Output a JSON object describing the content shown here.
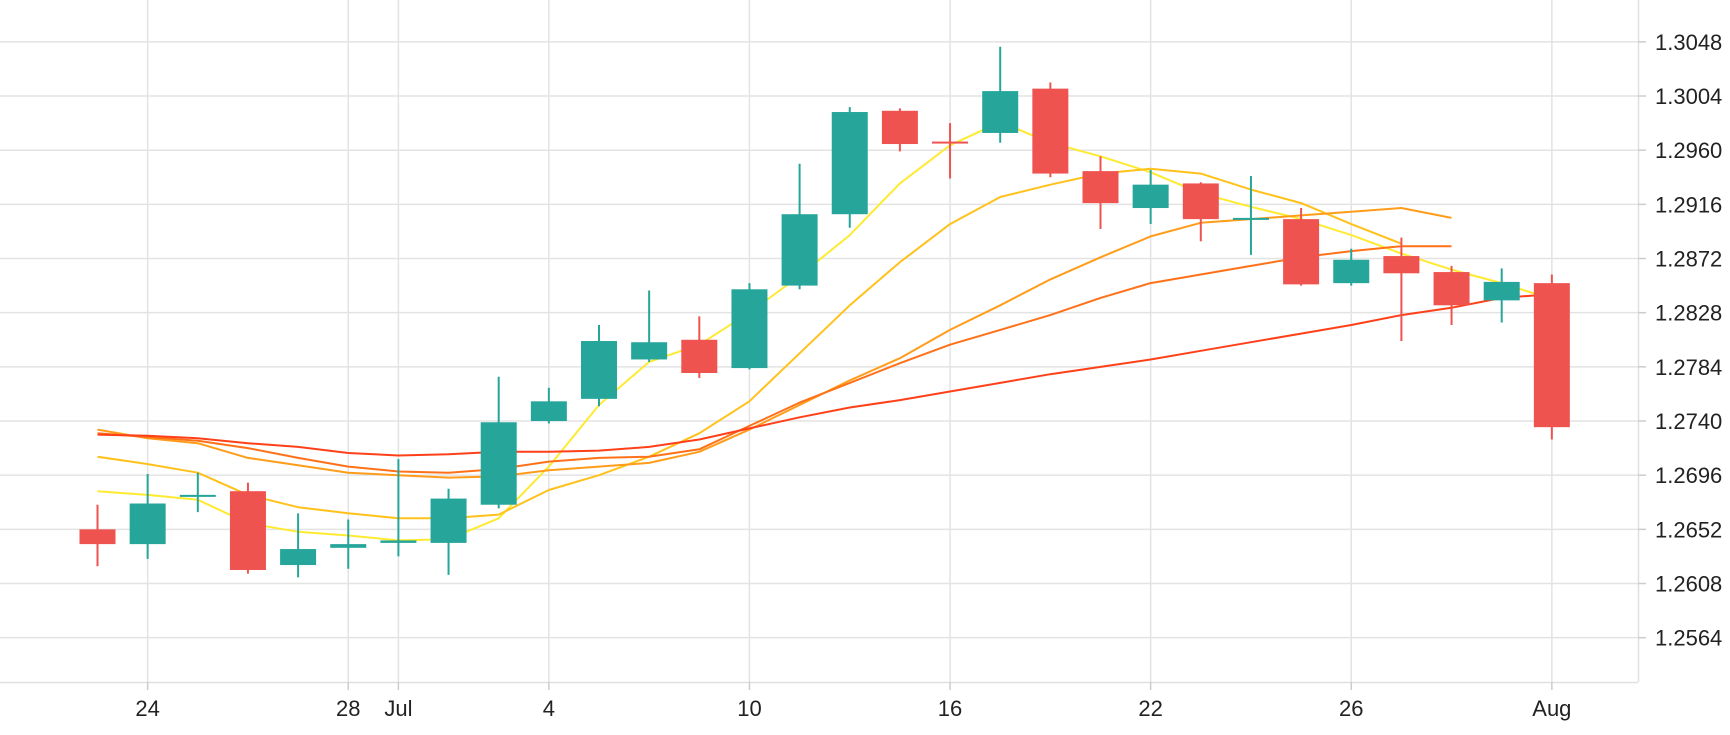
{
  "chart_data": {
    "type": "candlestick",
    "title": "",
    "xlabel": "",
    "ylabel": "",
    "ylim": [
      1.2528,
      1.3082
    ],
    "grid": true,
    "y_ticks": [
      "1.2564",
      "1.2608",
      "1.2652",
      "1.2696",
      "1.2740",
      "1.2784",
      "1.2828",
      "1.2872",
      "1.2916",
      "1.2960",
      "1.3004",
      "1.3048"
    ],
    "x_ticks": [
      {
        "index": 1,
        "label": "24"
      },
      {
        "index": 5,
        "label": "28"
      },
      {
        "index": 6,
        "label": "Jul"
      },
      {
        "index": 9,
        "label": "4"
      },
      {
        "index": 13,
        "label": "10"
      },
      {
        "index": 17,
        "label": "16"
      },
      {
        "index": 21,
        "label": "22"
      },
      {
        "index": 25,
        "label": "26"
      },
      {
        "index": 29,
        "label": "Aug"
      }
    ],
    "up_color": "#26a69a",
    "down_color": "#ef5350",
    "candles": [
      {
        "o": 1.2652,
        "h": 1.2672,
        "l": 1.2622,
        "c": 1.264
      },
      {
        "o": 1.264,
        "h": 1.2697,
        "l": 1.2628,
        "c": 1.2673
      },
      {
        "o": 1.268,
        "h": 1.2698,
        "l": 1.2666,
        "c": 1.268
      },
      {
        "o": 1.2683,
        "h": 1.269,
        "l": 1.2616,
        "c": 1.2619
      },
      {
        "o": 1.2623,
        "h": 1.2665,
        "l": 1.2613,
        "c": 1.2636
      },
      {
        "o": 1.2637,
        "h": 1.266,
        "l": 1.262,
        "c": 1.264
      },
      {
        "o": 1.2641,
        "h": 1.2709,
        "l": 1.263,
        "c": 1.2643
      },
      {
        "o": 1.2641,
        "h": 1.2685,
        "l": 1.2615,
        "c": 1.2677
      },
      {
        "o": 1.2672,
        "h": 1.2776,
        "l": 1.2669,
        "c": 1.2739
      },
      {
        "o": 1.274,
        "h": 1.2767,
        "l": 1.2738,
        "c": 1.2756
      },
      {
        "o": 1.2758,
        "h": 1.2818,
        "l": 1.2752,
        "c": 1.2805
      },
      {
        "o": 1.279,
        "h": 1.2846,
        "l": 1.2788,
        "c": 1.2804
      },
      {
        "o": 1.2806,
        "h": 1.2825,
        "l": 1.2775,
        "c": 1.2779
      },
      {
        "o": 1.2783,
        "h": 1.2852,
        "l": 1.2782,
        "c": 1.2847
      },
      {
        "o": 1.285,
        "h": 1.2949,
        "l": 1.2847,
        "c": 1.2908
      },
      {
        "o": 1.2908,
        "h": 1.2995,
        "l": 1.2897,
        "c": 1.2991
      },
      {
        "o": 1.2992,
        "h": 1.2994,
        "l": 1.2959,
        "c": 1.2965
      },
      {
        "o": 1.2967,
        "h": 1.2982,
        "l": 1.2937,
        "c": 1.2966
      },
      {
        "o": 1.2974,
        "h": 1.3044,
        "l": 1.2966,
        "c": 1.3008
      },
      {
        "o": 1.301,
        "h": 1.3015,
        "l": 1.2938,
        "c": 1.2941
      },
      {
        "o": 1.2943,
        "h": 1.2955,
        "l": 1.2896,
        "c": 1.2917
      },
      {
        "o": 1.2913,
        "h": 1.2944,
        "l": 1.29,
        "c": 1.2932
      },
      {
        "o": 1.2933,
        "h": 1.2934,
        "l": 1.2886,
        "c": 1.2904
      },
      {
        "o": 1.2905,
        "h": 1.2939,
        "l": 1.2875,
        "c": 1.2905
      },
      {
        "o": 1.2904,
        "h": 1.2913,
        "l": 1.285,
        "c": 1.2851
      },
      {
        "o": 1.2852,
        "h": 1.288,
        "l": 1.285,
        "c": 1.2871
      },
      {
        "o": 1.2874,
        "h": 1.2889,
        "l": 1.2805,
        "c": 1.286
      },
      {
        "o": 1.2861,
        "h": 1.2866,
        "l": 1.2818,
        "c": 1.2834
      },
      {
        "o": 1.2838,
        "h": 1.2864,
        "l": 1.282,
        "c": 1.2853
      },
      {
        "o": 1.2852,
        "h": 1.2859,
        "l": 1.2725,
        "c": 1.2735
      }
    ],
    "moving_averages": [
      {
        "color": "#ffea32",
        "values": [
          1.2683,
          1.268,
          1.2676,
          1.2657,
          1.265,
          1.2647,
          1.2643,
          1.2644,
          1.2661,
          1.2703,
          1.2753,
          1.2788,
          1.2802,
          1.2828,
          1.2858,
          1.2891,
          1.2933,
          1.2964,
          1.2983,
          1.2966,
          1.2955,
          1.2942,
          1.2925,
          1.2914,
          1.2904,
          1.2891,
          1.2876,
          1.2863,
          1.2852,
          1.2839
        ]
      },
      {
        "color": "#ffc11a",
        "values": [
          1.2711,
          1.2705,
          1.2698,
          1.268,
          1.267,
          1.2665,
          1.2661,
          1.2661,
          1.2664,
          1.2684,
          1.2696,
          1.2711,
          1.273,
          1.2756,
          1.2795,
          1.2834,
          1.2869,
          1.29,
          1.2922,
          1.2932,
          1.2941,
          1.2945,
          1.2941,
          1.2928,
          1.2917,
          1.29,
          1.2884
        ]
      },
      {
        "color": "#ff9c1a",
        "values": [
          1.2733,
          1.2726,
          1.2722,
          1.271,
          1.2704,
          1.2698,
          1.2696,
          1.2694,
          1.2695,
          1.27,
          1.2703,
          1.2706,
          1.2715,
          1.2733,
          1.2753,
          1.2773,
          1.2791,
          1.2814,
          1.2834,
          1.2855,
          1.2873,
          1.289,
          1.2901,
          1.2904,
          1.2907,
          1.291,
          1.2913,
          1.2905
        ]
      },
      {
        "color": "#ff7119",
        "values": [
          1.273,
          1.2727,
          1.2724,
          1.2718,
          1.271,
          1.2703,
          1.2699,
          1.2698,
          1.2701,
          1.2707,
          1.271,
          1.2711,
          1.2717,
          1.2736,
          1.2755,
          1.2771,
          1.2787,
          1.2802,
          1.2814,
          1.2826,
          1.284,
          1.2852,
          1.2859,
          1.2866,
          1.2873,
          1.2878,
          1.2882,
          1.2882
        ]
      },
      {
        "color": "#ff4019",
        "values": [
          1.2729,
          1.2728,
          1.2726,
          1.2722,
          1.2719,
          1.2714,
          1.2712,
          1.2713,
          1.2715,
          1.2715,
          1.2716,
          1.2719,
          1.2725,
          1.2734,
          1.2743,
          1.2751,
          1.2757,
          1.2764,
          1.2771,
          1.2778,
          1.2784,
          1.279,
          1.2797,
          1.2804,
          1.2811,
          1.2818,
          1.2826,
          1.2832,
          1.284,
          1.2843
        ]
      }
    ]
  }
}
